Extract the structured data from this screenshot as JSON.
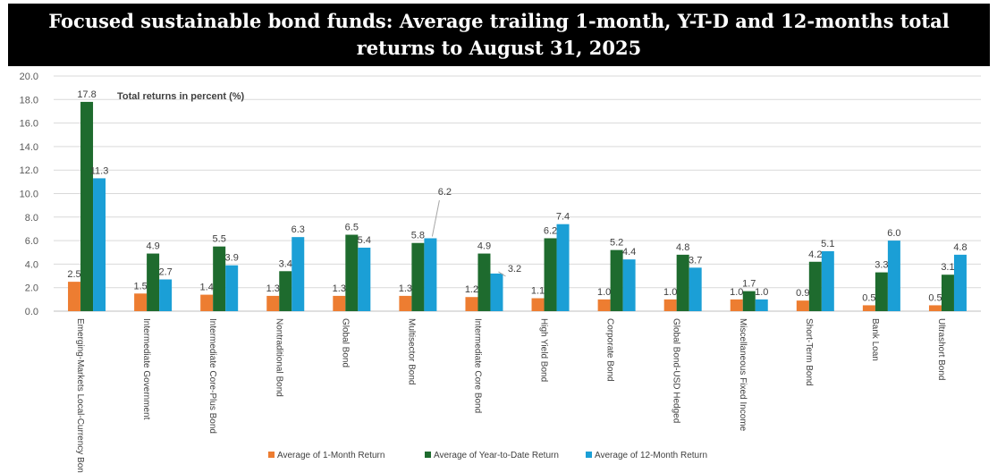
{
  "title": "Focused sustainable bond funds: Average trailing 1-month, Y-T-D and 12-months total returns to August 31, 2025",
  "colors": {
    "one_month": "#ED7D31",
    "ytd": "#1E6B2E",
    "twelve_month": "#1B9FD6",
    "title_bg": "#000000"
  },
  "chart_data": {
    "type": "bar",
    "annotation": "Total returns in percent (%)",
    "ylim": [
      0,
      20
    ],
    "yticks": [
      "0.0",
      "2.0",
      "4.0",
      "6.0",
      "8.0",
      "10.0",
      "12.0",
      "14.0",
      "16.0",
      "18.0",
      "20.0"
    ],
    "grid": true,
    "legend_position": "bottom",
    "categories": [
      "Emerging-Markets Local-Currency Bond",
      "Intermediate Government",
      "Intermediate Core-Plus Bond",
      "Nontraditional Bond",
      "Global Bond",
      "Multisector Bond",
      "Intermediate Core Bond",
      "High Yield Bond",
      "Corporate Bond",
      "Global Bond-USD Hedged",
      "Miscellaneous Fixed Income",
      "Short-Term Bond",
      "Bank Loan",
      "Ultrashort Bond"
    ],
    "series": [
      {
        "name": "Average of 1-Month Return",
        "values": [
          2.5,
          1.5,
          1.4,
          1.3,
          1.3,
          1.3,
          1.2,
          1.1,
          1.0,
          1.0,
          1.0,
          0.9,
          0.5,
          0.5
        ],
        "labels": [
          "2.5",
          "1.5",
          "1.4",
          "1.3",
          "1.3",
          "1.3",
          "1.2",
          "1.1",
          "1.0",
          "1.0",
          "1.0",
          "0.9",
          "0.5",
          "0.5"
        ]
      },
      {
        "name": "Average of Year-to-Date Return",
        "values": [
          17.8,
          4.9,
          5.5,
          3.4,
          6.5,
          5.8,
          4.9,
          6.2,
          5.2,
          4.8,
          1.7,
          4.2,
          3.3,
          3.1
        ],
        "labels": [
          "17.8",
          "4.9",
          "5.5",
          "3.4",
          "6.5",
          "5.8",
          "4.9",
          "6.2",
          "5.2",
          "4.8",
          "1.7",
          "4.2",
          "3.3",
          "3.1"
        ]
      },
      {
        "name": "Average of 12-Month Return",
        "values": [
          11.3,
          2.7,
          3.9,
          6.3,
          5.4,
          6.2,
          3.2,
          7.4,
          4.4,
          3.7,
          1.0,
          5.1,
          6.0,
          4.8
        ],
        "labels": [
          "11.3",
          "2.7",
          "3.9",
          "6.3",
          "5.4",
          "6.2",
          "3.2",
          "7.4",
          "4.4",
          "3.7",
          "1.0",
          "5.1",
          "6.0",
          "4.8"
        ]
      }
    ]
  }
}
